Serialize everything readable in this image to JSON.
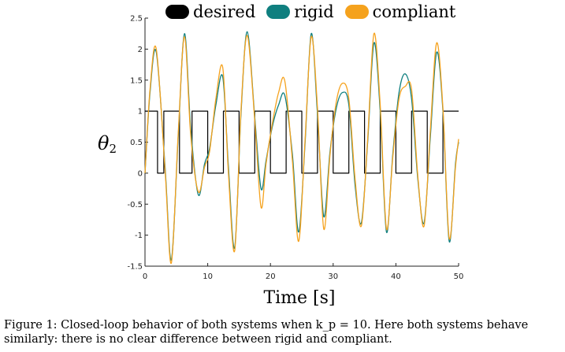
{
  "chart_data": {
    "type": "line",
    "title": "",
    "xlabel": "Time [s]",
    "ylabel_symbol": "θ",
    "ylabel_subscript": "2",
    "xlim": [
      0,
      50
    ],
    "ylim": [
      -1.5,
      2.5
    ],
    "xticks": [
      "0",
      "10",
      "20",
      "30",
      "40",
      "50"
    ],
    "yticks": [
      "-1.5",
      "-1",
      "-0.5",
      "0",
      "0.5",
      "1",
      "1.5",
      "2",
      "2.5"
    ],
    "grid": false,
    "legend_placement": "top",
    "legend": [
      {
        "label": "desired",
        "color": "#000000"
      },
      {
        "label": "rigid",
        "color": "#0f7f7f"
      },
      {
        "label": "compliant",
        "color": "#f5a21d"
      }
    ],
    "series": [
      {
        "name": "desired",
        "color": "#000000",
        "step": true,
        "x": [
          0,
          2,
          2,
          3,
          3,
          5.5,
          5.5,
          7.5,
          7.5,
          10,
          10,
          12.5,
          12.5,
          15,
          15,
          17.5,
          17.5,
          20,
          20,
          22.5,
          22.5,
          25,
          25,
          27.5,
          27.5,
          30,
          30,
          32.5,
          32.5,
          35,
          35,
          37.5,
          37.5,
          40,
          40,
          42.5,
          42.5,
          45,
          45,
          47.5,
          47.5,
          50
        ],
        "y": [
          1,
          1,
          0,
          0,
          1,
          1,
          0,
          0,
          1,
          1,
          0,
          0,
          1,
          1,
          0,
          0,
          1,
          1,
          0,
          0,
          1,
          1,
          0,
          0,
          1,
          1,
          0,
          0,
          1,
          1,
          0,
          0,
          1,
          1,
          0,
          0,
          1,
          1,
          0,
          0,
          1,
          1
        ]
      },
      {
        "name": "rigid",
        "color": "#0f7f7f",
        "x": [
          0,
          0.8,
          1.8,
          3.2,
          4.2,
          5.3,
          6.3,
          7.3,
          8.5,
          9.5,
          10.3,
          11.3,
          12.4,
          13.3,
          14.3,
          15.3,
          16.3,
          17.5,
          18.5,
          19.3,
          20.3,
          21.3,
          22.3,
          23.5,
          24.5,
          25.5,
          26.5,
          27.5,
          28.5,
          29.5,
          30.5,
          31.5,
          32.5,
          33.5,
          34.5,
          35.5,
          36.5,
          37.5,
          38.5,
          39.5,
          40.5,
          41.5,
          42.5,
          43.5,
          44.5,
          45.5,
          46.5,
          47.5,
          48.5,
          49.5,
          50
        ],
        "y": [
          0,
          1.3,
          1.95,
          0.1,
          -1.4,
          0.6,
          2.25,
          0.7,
          -0.35,
          0.15,
          0.4,
          1.1,
          1.55,
          0.1,
          -1.2,
          0.95,
          2.28,
          0.9,
          -0.25,
          0.2,
          0.75,
          1.1,
          1.25,
          0.3,
          -0.95,
          0.45,
          2.25,
          0.95,
          -0.7,
          0.35,
          1.05,
          1.3,
          1.1,
          -0.2,
          -0.8,
          0.5,
          2.1,
          1.0,
          -0.95,
          0.3,
          1.3,
          1.6,
          1.2,
          -0.1,
          -0.8,
          0.6,
          1.95,
          1.0,
          -1.1,
          0.15,
          0.5
        ]
      },
      {
        "name": "compliant",
        "color": "#f5a21d",
        "x": [
          0,
          0.8,
          1.8,
          3.2,
          4.2,
          5.3,
          6.3,
          7.3,
          8.5,
          9.5,
          10.3,
          11.3,
          12.4,
          13.3,
          14.3,
          15.3,
          16.3,
          17.5,
          18.5,
          19.3,
          20.3,
          21.3,
          22.3,
          23.5,
          24.5,
          25.5,
          26.5,
          27.5,
          28.5,
          29.5,
          30.5,
          31.5,
          32.5,
          33.5,
          34.5,
          35.5,
          36.5,
          37.5,
          38.5,
          39.5,
          40.5,
          41.5,
          42.5,
          43.5,
          44.5,
          45.5,
          46.5,
          47.5,
          48.5,
          49.5,
          50
        ],
        "y": [
          0,
          1.35,
          2.0,
          0.05,
          -1.45,
          0.65,
          2.2,
          0.6,
          -0.3,
          0.1,
          0.35,
          1.2,
          1.7,
          0.0,
          -1.25,
          1.0,
          2.22,
          0.85,
          -0.55,
          0.15,
          0.8,
          1.3,
          1.48,
          0.2,
          -1.1,
          0.5,
          2.2,
          1.05,
          -0.9,
          0.3,
          1.15,
          1.45,
          1.2,
          -0.1,
          -0.85,
          0.55,
          2.25,
          1.1,
          -0.9,
          0.25,
          1.2,
          1.4,
          1.35,
          -0.05,
          -0.85,
          0.7,
          2.1,
          1.05,
          -1.05,
          0.1,
          0.55
        ]
      }
    ]
  },
  "caption": {
    "line1": "Figure 1: Closed-loop behavior of both systems when k_p = 10.  Here both systems behave",
    "line2": "similarly: there is no clear difference between rigid and compliant."
  }
}
